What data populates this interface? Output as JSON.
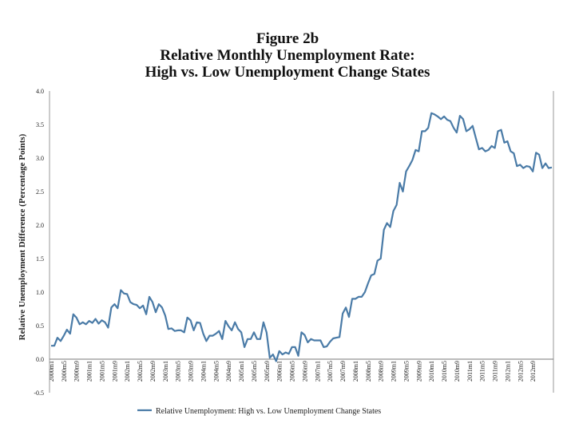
{
  "title": {
    "line1": "Figure 2b",
    "line2": "Relative Monthly Unemployment Rate:",
    "line3": "High vs. Low Unemployment Change States"
  },
  "chart_data": {
    "type": "line",
    "title": "Relative Monthly Unemployment Rate: High vs. Low Unemployment Change States",
    "xlabel": "",
    "ylabel": "Relative Unemployment Difference (Percentage Points)",
    "ylim": [
      -0.5,
      4.0
    ],
    "yticks": [
      "4.0",
      "3.5",
      "3.0",
      "2.5",
      "2.0",
      "1.5",
      "1.0",
      "0.5",
      "0.0",
      "-0.5"
    ],
    "xticks": [
      "2000m1",
      "2000m5",
      "2000m9",
      "2001m1",
      "2001m5",
      "2001m9",
      "2002m1",
      "2002m5",
      "2002m9",
      "2003m1",
      "2003m5",
      "2003m9",
      "2004m1",
      "2004m5",
      "2004m9",
      "2005m1",
      "2005m5",
      "2005m9",
      "2006m1",
      "2006m5",
      "2006m9",
      "2007m1",
      "2007m5",
      "2007m9",
      "2008m1",
      "2008m5",
      "2008m9",
      "2009m1",
      "2009m5",
      "2009m9",
      "2010m1",
      "2010m5",
      "2010m9",
      "2011m1",
      "2011m5",
      "2011m9",
      "2012m1",
      "2012m5",
      "2012m9"
    ],
    "grid": false,
    "legend_position": "bottom",
    "series": [
      {
        "name": "Relative Unemployment: High vs. Low Unemployment Change States",
        "color": "#4a7ba7",
        "values": [
          0.2,
          0.2,
          0.32,
          0.27,
          0.35,
          0.44,
          0.38,
          0.67,
          0.62,
          0.52,
          0.55,
          0.52,
          0.57,
          0.54,
          0.6,
          0.53,
          0.58,
          0.55,
          0.47,
          0.77,
          0.82,
          0.76,
          1.03,
          0.98,
          0.97,
          0.85,
          0.82,
          0.81,
          0.76,
          0.8,
          0.67,
          0.93,
          0.85,
          0.7,
          0.82,
          0.77,
          0.65,
          0.45,
          0.46,
          0.42,
          0.43,
          0.43,
          0.4,
          0.62,
          0.58,
          0.43,
          0.55,
          0.54,
          0.38,
          0.27,
          0.35,
          0.35,
          0.38,
          0.42,
          0.3,
          0.57,
          0.49,
          0.43,
          0.55,
          0.45,
          0.4,
          0.18,
          0.3,
          0.3,
          0.4,
          0.3,
          0.3,
          0.55,
          0.4,
          0.02,
          0.07,
          -0.03,
          0.12,
          0.07,
          0.1,
          0.08,
          0.18,
          0.18,
          0.05,
          0.4,
          0.36,
          0.25,
          0.3,
          0.28,
          0.28,
          0.28,
          0.18,
          0.19,
          0.26,
          0.31,
          0.32,
          0.33,
          0.68,
          0.77,
          0.63,
          0.9,
          0.9,
          0.93,
          0.93,
          1.0,
          1.13,
          1.25,
          1.27,
          1.47,
          1.5,
          1.93,
          2.03,
          1.97,
          2.21,
          2.3,
          2.63,
          2.5,
          2.8,
          2.88,
          2.97,
          3.12,
          3.1,
          3.4,
          3.4,
          3.45,
          3.67,
          3.65,
          3.62,
          3.58,
          3.62,
          3.57,
          3.55,
          3.45,
          3.38,
          3.63,
          3.58,
          3.4,
          3.43,
          3.48,
          3.3,
          3.13,
          3.15,
          3.1,
          3.12,
          3.18,
          3.15,
          3.4,
          3.42,
          3.23,
          3.25,
          3.1,
          3.07,
          2.88,
          2.9,
          2.85,
          2.88,
          2.87,
          2.8,
          3.08,
          3.05,
          2.85,
          2.92,
          2.85,
          2.86
        ]
      }
    ]
  }
}
